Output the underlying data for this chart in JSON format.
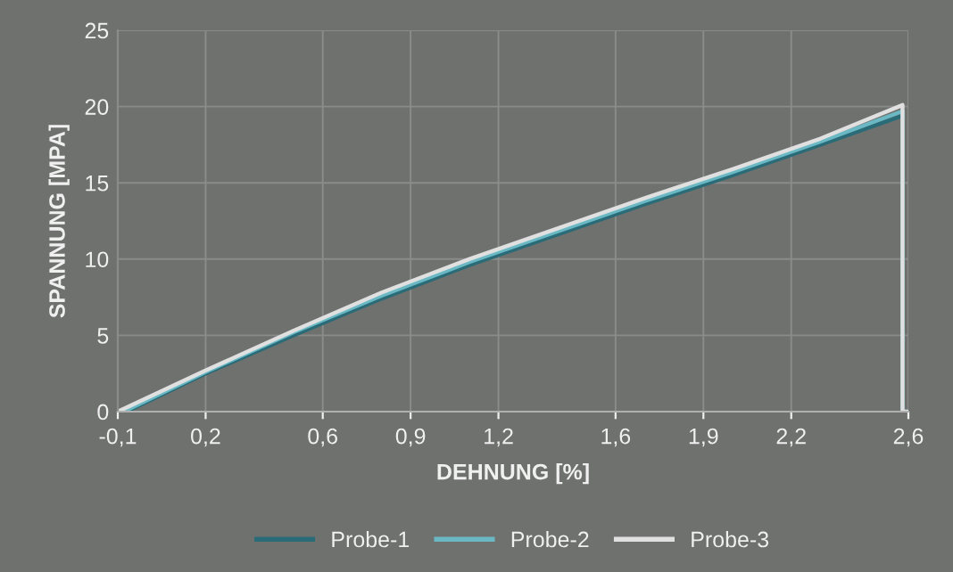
{
  "chart_data": {
    "type": "line",
    "xlabel": "DEHNUNG [%]",
    "ylabel": "SPANNUNG [MPA]",
    "xlim": [
      -0.1,
      2.6
    ],
    "ylim": [
      0,
      25
    ],
    "xticks": [
      {
        "value": -0.1,
        "label": "-0,1"
      },
      {
        "value": 0.2,
        "label": "0,2"
      },
      {
        "value": 0.6,
        "label": "0,6"
      },
      {
        "value": 0.9,
        "label": "0,9"
      },
      {
        "value": 1.2,
        "label": "1,2"
      },
      {
        "value": 1.6,
        "label": "1,6"
      },
      {
        "value": 1.9,
        "label": "1,9"
      },
      {
        "value": 2.2,
        "label": "2,2"
      },
      {
        "value": 2.6,
        "label": "2,6"
      }
    ],
    "yticks": [
      0,
      5,
      10,
      15,
      20,
      25
    ],
    "grid": true,
    "legend": "bottom",
    "marker": "none",
    "line_style": "solid",
    "series": [
      {
        "name": "Probe-1",
        "color": "#2a6b78",
        "x": [
          -0.07,
          0.2,
          0.5,
          0.8,
          1.1,
          1.4,
          1.7,
          2.0,
          2.3,
          2.58,
          2.58,
          2.6
        ],
        "values": [
          0,
          2.5,
          5.0,
          7.4,
          9.6,
          11.6,
          13.6,
          15.5,
          17.5,
          19.4,
          0,
          0
        ]
      },
      {
        "name": "Probe-2",
        "color": "#6ab8c4",
        "x": [
          -0.08,
          0.2,
          0.5,
          0.8,
          1.1,
          1.4,
          1.7,
          2.0,
          2.3,
          2.58,
          2.58,
          2.6
        ],
        "values": [
          0,
          2.6,
          5.2,
          7.6,
          9.8,
          11.8,
          13.8,
          15.7,
          17.7,
          19.7,
          0,
          0
        ]
      },
      {
        "name": "Probe-3",
        "color": "#e0e0e0",
        "x": [
          -0.1,
          0.2,
          0.5,
          0.8,
          1.1,
          1.4,
          1.7,
          2.0,
          2.3,
          2.58,
          2.58,
          2.6
        ],
        "values": [
          0,
          2.7,
          5.3,
          7.8,
          10.0,
          12.0,
          14.0,
          15.9,
          17.9,
          20.1,
          0,
          0
        ]
      }
    ]
  }
}
